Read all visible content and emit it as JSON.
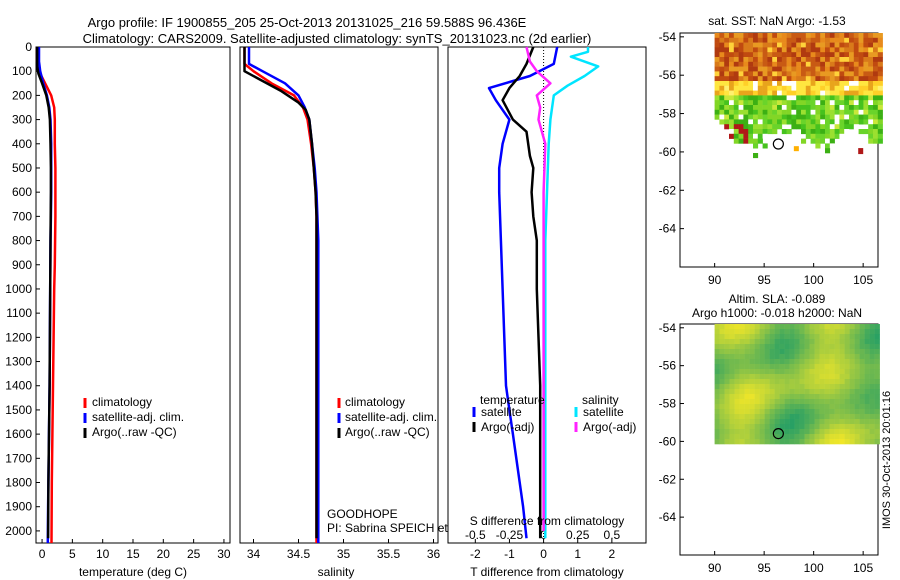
{
  "header": {
    "line1": "Argo profile: IF 1900855_205 25-Oct-2013 20131025_216 59.588S 96.436E",
    "line2": "Climatology: CARS2009. Satellite-adjusted climatology: synTS_20131023.nc (2d earlier)"
  },
  "colors": {
    "climatology": "#ff0000",
    "satellite": "#0000ff",
    "argo": "#000000",
    "sal_satellite": "#00e5ff",
    "sal_argo": "#ff22ff"
  },
  "footer": {
    "project": "GOODHOPE",
    "pi": "PI: Sabrina SPEICH et Michel ARHAN",
    "watermark": "IMOS 30-Oct-2013 20:01:16"
  },
  "chart_data": [
    {
      "type": "line",
      "id": "temperature",
      "xlabel": "temperature (deg C)",
      "ylabel": "",
      "xlim": [
        -1,
        31
      ],
      "ylim": [
        2050,
        0
      ],
      "xticks": [
        0,
        5,
        10,
        15,
        20,
        25,
        30
      ],
      "yticks": [
        0,
        100,
        200,
        300,
        400,
        500,
        600,
        700,
        800,
        900,
        1000,
        1100,
        1200,
        1300,
        1400,
        1500,
        1600,
        1700,
        1800,
        1900,
        2000
      ],
      "legend": [
        "climatology",
        "satellite-adj. clim.",
        "Argo(..raw -QC)"
      ],
      "series": [
        {
          "name": "climatology",
          "color_key": "climatology",
          "x": [
            -0.8,
            -0.8,
            -0.5,
            0.5,
            1.5,
            2.0,
            2.1,
            2.1,
            2.2,
            2.2,
            2.2,
            2.15,
            2.1,
            2.0,
            1.95,
            1.9,
            1.85,
            1.8,
            1.75,
            1.7,
            1.65,
            1.6,
            1.55
          ],
          "y": [
            0,
            60,
            100,
            150,
            200,
            250,
            300,
            400,
            500,
            600,
            700,
            800,
            900,
            1000,
            1100,
            1200,
            1300,
            1400,
            1500,
            1600,
            1700,
            1800,
            2050
          ]
        },
        {
          "name": "satellite-adj. clim.",
          "color_key": "satellite",
          "x": [
            -0.5,
            -0.5,
            -0.3,
            0.2,
            0.8,
            1.2,
            1.4,
            1.5,
            1.5,
            1.5,
            1.45,
            1.4,
            1.35,
            1.3,
            1.25,
            1.2,
            1.15,
            1.1,
            1.05,
            1.0,
            0.95
          ],
          "y": [
            0,
            60,
            100,
            150,
            200,
            250,
            300,
            400,
            500,
            600,
            700,
            800,
            1000,
            1200,
            1400,
            1500,
            1600,
            1700,
            1800,
            1900,
            2050
          ]
        },
        {
          "name": "Argo(..raw -QC)",
          "color_key": "argo",
          "x": [
            -0.8,
            -0.8,
            -0.6,
            0.0,
            0.7,
            1.1,
            1.3,
            1.4,
            1.45,
            1.45,
            1.4,
            1.35,
            1.3,
            1.25,
            1.2,
            1.15,
            1.1,
            1.05,
            1.0
          ],
          "y": [
            0,
            80,
            110,
            150,
            200,
            250,
            300,
            400,
            500,
            600,
            800,
            1000,
            1200,
            1400,
            1500,
            1600,
            1700,
            1800,
            2030
          ]
        }
      ]
    },
    {
      "type": "line",
      "id": "salinity",
      "xlabel": "salinity",
      "xlim": [
        33.85,
        36.05
      ],
      "ylim": [
        2050,
        0
      ],
      "xticks": [
        34,
        34.5,
        35,
        35.5,
        36
      ],
      "legend": [
        "climatology",
        "satellite-adj. clim.",
        "Argo(..raw -QC)"
      ],
      "series": [
        {
          "name": "climatology",
          "color_key": "climatology",
          "x": [
            33.9,
            33.9,
            34.0,
            34.2,
            34.45,
            34.55,
            34.6,
            34.64,
            34.67,
            34.69,
            34.7,
            34.7,
            34.7,
            34.7,
            34.7,
            34.7,
            34.7,
            34.7
          ],
          "y": [
            0,
            70,
            100,
            150,
            200,
            250,
            300,
            400,
            500,
            600,
            700,
            800,
            1000,
            1200,
            1400,
            1600,
            1800,
            2050
          ]
        },
        {
          "name": "satellite-adj. clim.",
          "color_key": "satellite",
          "x": [
            33.95,
            33.95,
            34.1,
            34.35,
            34.5,
            34.57,
            34.62,
            34.65,
            34.68,
            34.7,
            34.71,
            34.72,
            34.72,
            34.72,
            34.72,
            34.72,
            34.72,
            34.72,
            34.72,
            34.72,
            34.72
          ],
          "y": [
            0,
            70,
            100,
            150,
            200,
            250,
            300,
            400,
            500,
            600,
            700,
            800,
            900,
            1000,
            1200,
            1400,
            1500,
            1600,
            1800,
            1900,
            2050
          ]
        },
        {
          "name": "Argo(..raw -QC)",
          "color_key": "argo",
          "x": [
            33.9,
            33.9,
            34.05,
            34.3,
            34.5,
            34.58,
            34.62,
            34.65,
            34.67,
            34.69,
            34.7,
            34.7,
            34.7,
            34.7,
            34.7,
            34.7
          ],
          "y": [
            0,
            100,
            130,
            180,
            230,
            260,
            300,
            400,
            500,
            600,
            700,
            800,
            1000,
            1200,
            1500,
            2030
          ]
        }
      ]
    },
    {
      "type": "line",
      "id": "differences",
      "xlabel": "T difference from climatology",
      "toplabel": "S difference from climatology",
      "xlim": [
        -2.8,
        3.0
      ],
      "ylim": [
        2050,
        0
      ],
      "xticks": [
        -2,
        -1,
        0,
        1,
        2
      ],
      "top_ticks": [
        {
          "label": "-0.5",
          "t": -2
        },
        {
          "label": "-0.25",
          "t": -1
        },
        {
          "label": "0",
          "t": 0
        },
        {
          "label": "0.25",
          "t": 1
        },
        {
          "label": "0.5",
          "t": 2
        }
      ],
      "legend_titles": [
        "temperature",
        "salinity"
      ],
      "legend": [
        "satellite",
        "Argo(-adj)",
        "satellite",
        "Argo(-adj)"
      ],
      "series": [
        {
          "name": "T satellite",
          "color_key": "satellite",
          "x": [
            0.4,
            0.3,
            -0.4,
            -1.6,
            -1.4,
            -1.0,
            -1.2,
            -1.3,
            -1.3,
            -1.25,
            -1.2,
            -1.15,
            -1.1,
            -1.0,
            -0.9,
            -0.8,
            -0.7,
            -0.6,
            -0.5
          ],
          "y": [
            0,
            70,
            120,
            170,
            220,
            300,
            400,
            500,
            600,
            800,
            1000,
            1200,
            1400,
            1500,
            1600,
            1700,
            1800,
            1900,
            2030
          ]
        },
        {
          "name": "T Argo",
          "color_key": "argo",
          "x": [
            -0.3,
            -0.5,
            -0.7,
            -1.0,
            -1.2,
            -0.9,
            -0.5,
            -0.4,
            -0.3,
            -0.35,
            -0.3,
            -0.2,
            -0.2,
            -0.15,
            -0.1,
            -0.1,
            -0.1
          ],
          "y": [
            0,
            70,
            120,
            170,
            220,
            300,
            350,
            450,
            500,
            600,
            700,
            800,
            1000,
            1200,
            1400,
            1700,
            2030
          ]
        },
        {
          "name": "S satellite",
          "color_key": "sal_satellite",
          "x": [
            1.3,
            1.3,
            0.8,
            1.6,
            1.2,
            0.7,
            0.3,
            0.2,
            0.15,
            0.1,
            0.05,
            0.05,
            0.05,
            0.05,
            0.05
          ],
          "y": [
            0,
            20,
            40,
            80,
            120,
            160,
            200,
            300,
            400,
            600,
            800,
            1000,
            1400,
            1800,
            2030
          ]
        },
        {
          "name": "S Argo",
          "color_key": "sal_argo",
          "x": [
            -0.5,
            -0.4,
            -0.2,
            0.2,
            -0.2,
            -0.1,
            -0.15,
            0.05,
            0.0,
            0.0,
            0.0,
            0.0
          ],
          "y": [
            0,
            60,
            100,
            150,
            200,
            250,
            300,
            400,
            600,
            1000,
            1500,
            2000
          ]
        }
      ]
    },
    {
      "type": "heatmap",
      "id": "sst_map",
      "title": "sat. SST: NaN Argo: -1.53",
      "xlim": [
        86.5,
        106.5
      ],
      "ylim": [
        -66,
        -53.8
      ],
      "xticks": [
        90,
        95,
        100,
        105
      ],
      "yticks": [
        -54,
        -56,
        -58,
        -60,
        -62,
        -64
      ],
      "marker": {
        "lon": 96.436,
        "lat": -59.588
      }
    },
    {
      "type": "heatmap",
      "id": "sla_map",
      "title1": "Altim. SLA: -0.089",
      "title2": "Argo h1000: -0.018 h2000: NaN",
      "xlim": [
        86.5,
        106.5
      ],
      "ylim": [
        -66,
        -53.8
      ],
      "xticks": [
        90,
        95,
        100,
        105
      ],
      "yticks": [
        -54,
        -56,
        -58,
        -60,
        -62,
        -64
      ],
      "marker": {
        "lon": 96.436,
        "lat": -59.588
      }
    }
  ]
}
